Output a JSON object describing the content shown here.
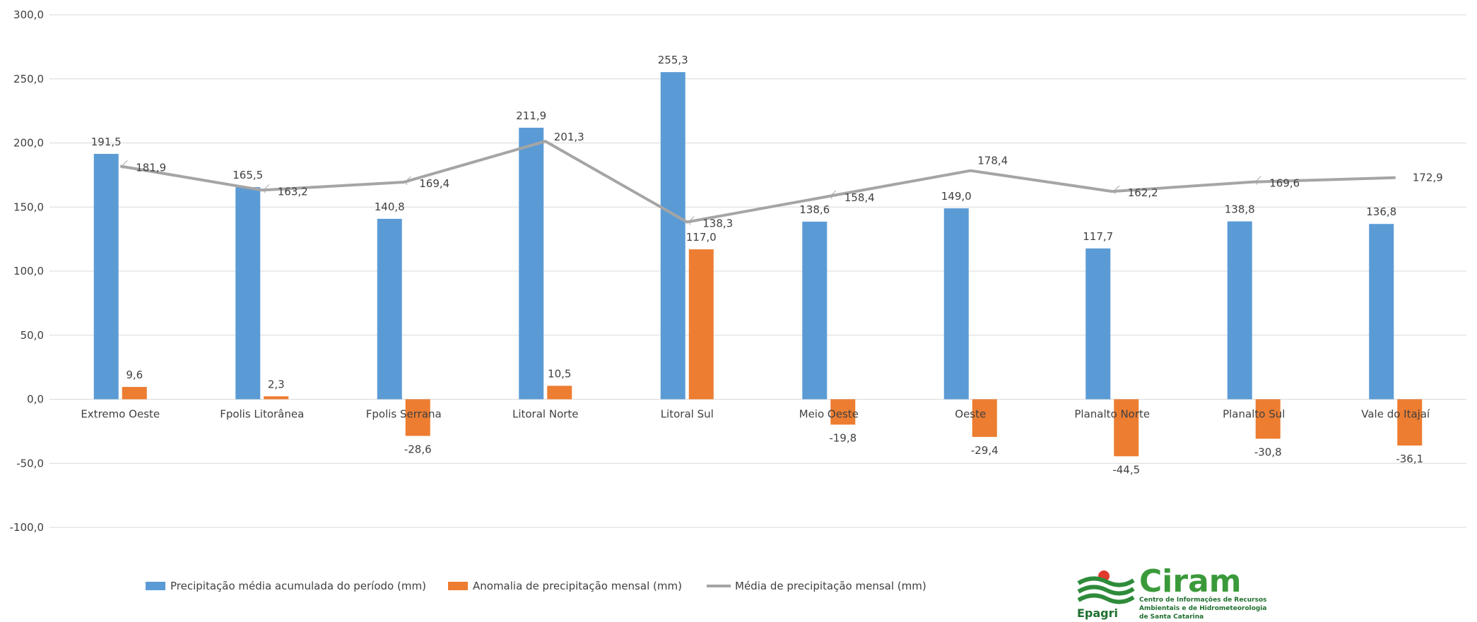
{
  "chart_data": {
    "type": "bar",
    "categories": [
      "Extremo Oeste",
      "Fpolis Litorânea",
      "Fpolis Serrana",
      "Litoral Norte",
      "Litoral Sul",
      "Meio Oeste",
      "Oeste",
      "Planalto Norte",
      "Planalto Sul",
      "Vale do Itajaí"
    ],
    "series": [
      {
        "name": "Precipitação média acumulada do período (mm)",
        "type": "bar",
        "color": "#5b9bd5",
        "values": [
          191.5,
          165.5,
          140.8,
          211.9,
          255.3,
          138.6,
          149.0,
          117.7,
          138.8,
          136.8
        ],
        "labels": [
          "191,5",
          "165,5",
          "140,8",
          "211,9",
          "255,3",
          "138,6",
          "149,0",
          "117,7",
          "138,8",
          "136,8"
        ]
      },
      {
        "name": "Anomalia de precipitação mensal (mm)",
        "type": "bar",
        "color": "#ed7d31",
        "values": [
          9.6,
          2.3,
          -28.6,
          10.5,
          117.0,
          -19.8,
          -29.4,
          -44.5,
          -30.8,
          -36.1
        ],
        "labels": [
          "9,6",
          "2,3",
          "-28,6",
          "10,5",
          "117,0",
          "-19,8",
          "-29,4",
          "-44,5",
          "-30,8",
          "-36,1"
        ]
      },
      {
        "name": "Média de precipitação mensal (mm)",
        "type": "line",
        "color": "#a5a5a5",
        "values": [
          181.9,
          163.2,
          169.4,
          201.3,
          138.3,
          158.4,
          178.4,
          162.2,
          169.6,
          172.9
        ],
        "labels": [
          "181,9",
          "163,2",
          "169,4",
          "201,3",
          "138,3",
          "158,4",
          "178,4",
          "162,2",
          "169,6",
          "172,9"
        ]
      }
    ],
    "ylim": [
      -100,
      300
    ],
    "yticks": [
      300,
      250,
      200,
      150,
      100,
      50,
      0,
      -50,
      -100
    ],
    "ytick_labels": [
      "300,0",
      "250,0",
      "200,0",
      "150,0",
      "100,0",
      "50,0",
      "0,0",
      "-50,0",
      "-100,0"
    ],
    "grid": true,
    "legend_position": "bottom"
  },
  "logo": {
    "name": "Ciram",
    "org": "Epagri",
    "subtitle_lines": [
      "Centro de Informações de Recursos",
      "Ambientais e de Hidrometeorologia",
      "de Santa Catarina"
    ]
  }
}
